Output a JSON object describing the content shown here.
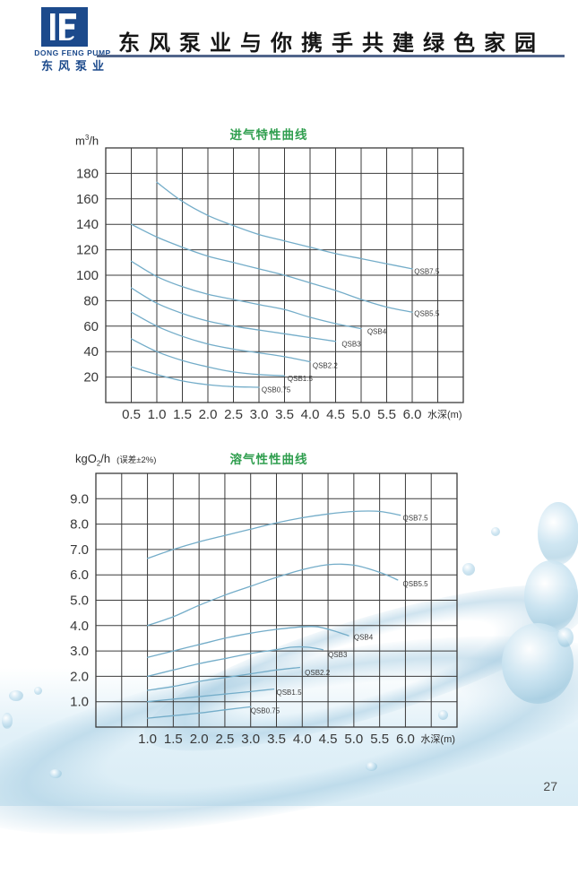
{
  "page": {
    "number": "27"
  },
  "header": {
    "logo": {
      "company_en": "DONG FENG PUMP",
      "company_cn": "东风泵业"
    },
    "slogan": "东风泵业与你携手共建绿色家园"
  },
  "colors": {
    "logo_navy": "#1c4a8c",
    "header_rule_blue": "#51658b",
    "title_green": "#2f9e4e",
    "curve_blue": "#74adc9",
    "grid_gray": "#3b3b3b",
    "splash_blue": "#cfe5f1",
    "page_number_gray": "#4a4a4a"
  },
  "chart_data": [
    {
      "type": "line",
      "title": "进气特性曲线",
      "ylabel": {
        "prefix": "m",
        "sup": "3",
        "suffix": "/h"
      },
      "xlabel": "水深(m)",
      "xlim": [
        0,
        7
      ],
      "ylim": [
        0,
        200
      ],
      "x_grid_step": 0.5,
      "y_grid_step": 20,
      "grid": true,
      "legend": "labels-at-curve-ends",
      "frame": {
        "l": 48,
        "t": 15,
        "r": 447,
        "b": 299
      },
      "x_ticks": [
        {
          "v": 0.5,
          "label": "0.5"
        },
        {
          "v": 1.0,
          "label": "1.0"
        },
        {
          "v": 1.5,
          "label": "1.5"
        },
        {
          "v": 2.0,
          "label": "2.0"
        },
        {
          "v": 2.5,
          "label": "2.5"
        },
        {
          "v": 3.0,
          "label": "3.0"
        },
        {
          "v": 3.5,
          "label": "3.5"
        },
        {
          "v": 4.0,
          "label": "4.0"
        },
        {
          "v": 4.5,
          "label": "4.5"
        },
        {
          "v": 5.0,
          "label": "5.0"
        },
        {
          "v": 5.5,
          "label": "5.5"
        },
        {
          "v": 6.0,
          "label": "6.0"
        }
      ],
      "y_ticks": [
        {
          "v": 180,
          "label": "180"
        },
        {
          "v": 160,
          "label": "160"
        },
        {
          "v": 140,
          "label": "140"
        },
        {
          "v": 120,
          "label": "120"
        },
        {
          "v": 100,
          "label": "100"
        },
        {
          "v": 80,
          "label": "80"
        },
        {
          "v": 60,
          "label": "60"
        },
        {
          "v": 40,
          "label": "40"
        },
        {
          "v": 20,
          "label": "20"
        }
      ],
      "series": [
        {
          "name": "QSB7.5",
          "x": [
            1.0,
            1.5,
            2.0,
            2.5,
            3.0,
            3.5,
            4.0,
            4.5,
            5.0,
            5.5,
            6.0
          ],
          "y": [
            173,
            158,
            147,
            139,
            132,
            127,
            122,
            117,
            113,
            109,
            105
          ],
          "label_xy": [
            6.04,
            101
          ]
        },
        {
          "name": "QSB5.5",
          "x": [
            0.5,
            1.0,
            1.5,
            2.0,
            2.5,
            3.0,
            3.5,
            4.0,
            4.5,
            5.0,
            5.5,
            6.0
          ],
          "y": [
            140,
            130,
            122,
            115,
            110,
            105,
            100,
            94,
            88,
            81,
            75,
            71
          ],
          "label_xy": [
            6.04,
            68
          ]
        },
        {
          "name": "QSB4",
          "x": [
            0.5,
            1.0,
            1.5,
            2.0,
            2.5,
            3.0,
            3.5,
            4.0,
            4.5,
            5.0
          ],
          "y": [
            111,
            99,
            91,
            85,
            81,
            77,
            73,
            67,
            62,
            58
          ],
          "label_xy": [
            5.12,
            54
          ]
        },
        {
          "name": "QSB3",
          "x": [
            0.5,
            1.0,
            1.5,
            2.0,
            2.5,
            3.0,
            3.5,
            4.0,
            4.5
          ],
          "y": [
            90,
            78,
            70,
            64,
            60,
            57,
            54,
            51,
            48
          ],
          "label_xy": [
            4.62,
            44
          ]
        },
        {
          "name": "QSB2.2",
          "x": [
            0.5,
            1.0,
            1.5,
            2.0,
            2.5,
            3.0,
            3.5,
            4.0
          ],
          "y": [
            71,
            60,
            52,
            46,
            42,
            39,
            36,
            32
          ],
          "label_xy": [
            4.05,
            27
          ]
        },
        {
          "name": "QSB1.5",
          "x": [
            0.5,
            1.0,
            1.5,
            2.0,
            2.5,
            3.0,
            3.5
          ],
          "y": [
            50,
            40,
            33,
            28,
            24,
            22,
            21
          ],
          "label_xy": [
            3.56,
            17
          ]
        },
        {
          "name": "QSB0.75",
          "x": [
            0.5,
            1.0,
            1.5,
            2.0,
            2.5,
            3.0
          ],
          "y": [
            28,
            22,
            17,
            14,
            12.5,
            12
          ],
          "label_xy": [
            3.05,
            8
          ]
        }
      ]
    },
    {
      "type": "line",
      "title": "溶气性性曲线",
      "ylabel": {
        "prefix": "kgO",
        "sub": "2",
        "suffix": "/h",
        "note": "(误差±2%)"
      },
      "xlabel": "水深(m)",
      "xlim": [
        0,
        7
      ],
      "ylim": [
        0,
        10
      ],
      "x_grid_step": 0.5,
      "y_grid_step": 1,
      "grid": true,
      "legend": "labels-at-curve-ends",
      "frame": {
        "l": 37,
        "t": 13,
        "r": 440,
        "b": 296
      },
      "x_ticks": [
        {
          "v": 1.0,
          "label": "1.0"
        },
        {
          "v": 1.5,
          "label": "1.5"
        },
        {
          "v": 2.0,
          "label": "2.0"
        },
        {
          "v": 2.5,
          "label": "2.5"
        },
        {
          "v": 3.0,
          "label": "3.0"
        },
        {
          "v": 3.5,
          "label": "3.5"
        },
        {
          "v": 4.0,
          "label": "4.0"
        },
        {
          "v": 4.5,
          "label": "4.5"
        },
        {
          "v": 5.0,
          "label": "5.0"
        },
        {
          "v": 5.5,
          "label": "5.5"
        },
        {
          "v": 6.0,
          "label": "6.0"
        }
      ],
      "y_ticks": [
        {
          "v": 9,
          "label": "9.0"
        },
        {
          "v": 8,
          "label": "8.0"
        },
        {
          "v": 7,
          "label": "7.0"
        },
        {
          "v": 6,
          "label": "6.0"
        },
        {
          "v": 5,
          "label": "5.0"
        },
        {
          "v": 4,
          "label": "4.0"
        },
        {
          "v": 3,
          "label": "3.0"
        },
        {
          "v": 2,
          "label": "2.0"
        },
        {
          "v": 1,
          "label": "1.0"
        }
      ],
      "series": [
        {
          "name": "QSB7.5",
          "x": [
            1.0,
            1.5,
            2.0,
            2.5,
            3.0,
            3.5,
            4.0,
            4.5,
            5.0,
            5.5,
            5.9
          ],
          "y": [
            6.65,
            7.0,
            7.3,
            7.55,
            7.8,
            8.05,
            8.25,
            8.4,
            8.5,
            8.5,
            8.35
          ],
          "label_xy": [
            5.95,
            8.15
          ]
        },
        {
          "name": "QSB5.5",
          "x": [
            1.0,
            1.5,
            2.0,
            2.5,
            3.0,
            3.5,
            4.0,
            4.5,
            5.0,
            5.5,
            5.85
          ],
          "y": [
            4.0,
            4.35,
            4.8,
            5.2,
            5.55,
            5.9,
            6.2,
            6.4,
            6.38,
            6.1,
            5.8
          ],
          "label_xy": [
            5.95,
            5.55
          ]
        },
        {
          "name": "QSB4",
          "x": [
            1.0,
            1.5,
            2.0,
            2.5,
            3.0,
            3.5,
            4.0,
            4.3,
            4.6,
            4.9
          ],
          "y": [
            2.75,
            3.0,
            3.25,
            3.5,
            3.7,
            3.85,
            3.95,
            3.95,
            3.8,
            3.6
          ],
          "label_xy": [
            5.0,
            3.45
          ]
        },
        {
          "name": "QSB3",
          "x": [
            1.0,
            1.5,
            2.0,
            2.5,
            3.0,
            3.5,
            3.8,
            4.1,
            4.4
          ],
          "y": [
            2.0,
            2.25,
            2.5,
            2.7,
            2.9,
            3.05,
            3.15,
            3.15,
            3.05
          ],
          "label_xy": [
            4.5,
            2.75
          ]
        },
        {
          "name": "QSB2.2",
          "x": [
            1.0,
            1.5,
            2.0,
            2.5,
            3.0,
            3.5,
            3.95
          ],
          "y": [
            1.45,
            1.6,
            1.8,
            1.95,
            2.1,
            2.25,
            2.35
          ],
          "label_xy": [
            4.05,
            2.05
          ]
        },
        {
          "name": "QSB1.5",
          "x": [
            1.0,
            1.5,
            2.0,
            2.5,
            3.0,
            3.45
          ],
          "y": [
            1.0,
            1.1,
            1.2,
            1.3,
            1.4,
            1.5
          ],
          "label_xy": [
            3.5,
            1.28
          ]
        },
        {
          "name": "QSB0.75",
          "x": [
            1.0,
            1.5,
            2.0,
            2.5,
            3.0
          ],
          "y": [
            0.35,
            0.45,
            0.55,
            0.68,
            0.8
          ],
          "label_xy": [
            3.0,
            0.55
          ]
        }
      ]
    }
  ]
}
